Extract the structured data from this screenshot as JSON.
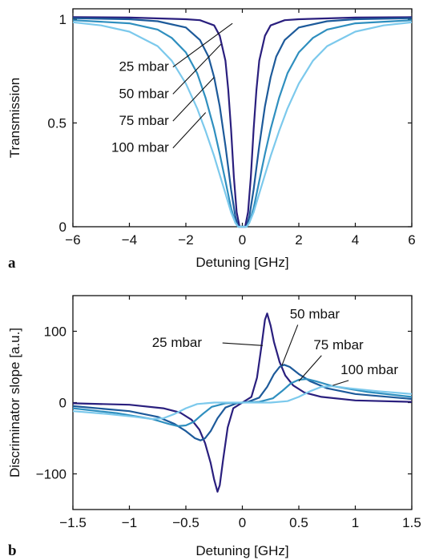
{
  "chart_data": [
    {
      "type": "line",
      "panel_label": "a",
      "xlabel": "Detuning [GHz]",
      "ylabel": "Transmission",
      "xlim": [
        -6,
        6
      ],
      "ylim": [
        0,
        1.05
      ],
      "xticks": [
        -6,
        -4,
        -2,
        0,
        2,
        4,
        6
      ],
      "xtick_labels": [
        "−6",
        "−4",
        "−2",
        "0",
        "2",
        "4",
        "6"
      ],
      "yticks": [
        0,
        0.5,
        1
      ],
      "ytick_labels": [
        "0",
        "0.5",
        "1"
      ],
      "grid": false,
      "series": [
        {
          "name": "25 mbar",
          "color": "#2a1f7e",
          "values": [
            [
              -6,
              1.01
            ],
            [
              -4,
              1.008
            ],
            [
              -2,
              1.0
            ],
            [
              -1.5,
              0.995
            ],
            [
              -1,
              0.97
            ],
            [
              -0.8,
              0.92
            ],
            [
              -0.6,
              0.8
            ],
            [
              -0.5,
              0.66
            ],
            [
              -0.4,
              0.47
            ],
            [
              -0.3,
              0.24
            ],
            [
              -0.2,
              0.07
            ],
            [
              -0.1,
              0.0
            ],
            [
              0,
              0.0
            ],
            [
              0.1,
              0.0
            ],
            [
              0.2,
              0.07
            ],
            [
              0.3,
              0.24
            ],
            [
              0.4,
              0.47
            ],
            [
              0.5,
              0.66
            ],
            [
              0.6,
              0.8
            ],
            [
              0.8,
              0.92
            ],
            [
              1,
              0.97
            ],
            [
              1.5,
              0.995
            ],
            [
              2,
              1.0
            ],
            [
              4,
              1.008
            ],
            [
              6,
              1.01
            ]
          ]
        },
        {
          "name": "50 mbar",
          "color": "#1d5a9a",
          "values": [
            [
              -6,
              1.005
            ],
            [
              -4,
              1.0
            ],
            [
              -3,
              0.99
            ],
            [
              -2,
              0.96
            ],
            [
              -1.5,
              0.9
            ],
            [
              -1.2,
              0.82
            ],
            [
              -1,
              0.72
            ],
            [
              -0.8,
              0.58
            ],
            [
              -0.6,
              0.39
            ],
            [
              -0.4,
              0.18
            ],
            [
              -0.25,
              0.05
            ],
            [
              -0.15,
              0.0
            ],
            [
              0,
              0.0
            ],
            [
              0.15,
              0.0
            ],
            [
              0.25,
              0.05
            ],
            [
              0.4,
              0.18
            ],
            [
              0.6,
              0.39
            ],
            [
              0.8,
              0.58
            ],
            [
              1,
              0.72
            ],
            [
              1.2,
              0.82
            ],
            [
              1.5,
              0.9
            ],
            [
              2,
              0.96
            ],
            [
              3,
              0.99
            ],
            [
              4,
              1.0
            ],
            [
              6,
              1.005
            ]
          ]
        },
        {
          "name": "75 mbar",
          "color": "#2f8fbf",
          "values": [
            [
              -6,
              0.995
            ],
            [
              -4,
              0.98
            ],
            [
              -3,
              0.95
            ],
            [
              -2.5,
              0.91
            ],
            [
              -2,
              0.84
            ],
            [
              -1.6,
              0.74
            ],
            [
              -1.3,
              0.62
            ],
            [
              -1,
              0.47
            ],
            [
              -0.8,
              0.35
            ],
            [
              -0.6,
              0.22
            ],
            [
              -0.4,
              0.09
            ],
            [
              -0.25,
              0.02
            ],
            [
              -0.15,
              0.0
            ],
            [
              0,
              0.0
            ],
            [
              0.15,
              0.0
            ],
            [
              0.25,
              0.02
            ],
            [
              0.4,
              0.09
            ],
            [
              0.6,
              0.22
            ],
            [
              0.8,
              0.35
            ],
            [
              1,
              0.47
            ],
            [
              1.3,
              0.62
            ],
            [
              1.6,
              0.74
            ],
            [
              2,
              0.84
            ],
            [
              2.5,
              0.91
            ],
            [
              3,
              0.95
            ],
            [
              4,
              0.98
            ],
            [
              6,
              0.995
            ]
          ]
        },
        {
          "name": "100 mbar",
          "color": "#7cc9ec",
          "values": [
            [
              -6,
              0.985
            ],
            [
              -5,
              0.97
            ],
            [
              -4,
              0.94
            ],
            [
              -3,
              0.87
            ],
            [
              -2.5,
              0.8
            ],
            [
              -2,
              0.69
            ],
            [
              -1.6,
              0.57
            ],
            [
              -1.3,
              0.46
            ],
            [
              -1,
              0.34
            ],
            [
              -0.8,
              0.25
            ],
            [
              -0.6,
              0.16
            ],
            [
              -0.4,
              0.07
            ],
            [
              -0.25,
              0.02
            ],
            [
              -0.15,
              0.0
            ],
            [
              0,
              0.0
            ],
            [
              0.15,
              0.0
            ],
            [
              0.25,
              0.02
            ],
            [
              0.4,
              0.07
            ],
            [
              0.6,
              0.16
            ],
            [
              0.8,
              0.25
            ],
            [
              1,
              0.34
            ],
            [
              1.3,
              0.46
            ],
            [
              1.6,
              0.57
            ],
            [
              2,
              0.69
            ],
            [
              2.5,
              0.8
            ],
            [
              3,
              0.87
            ],
            [
              4,
              0.94
            ],
            [
              5,
              0.97
            ],
            [
              6,
              0.985
            ]
          ]
        }
      ],
      "annotations": [
        {
          "text": "25 mbar",
          "x": -2.6,
          "y": 0.75,
          "to": [
            -0.35,
            0.98
          ]
        },
        {
          "text": "50 mbar",
          "x": -2.6,
          "y": 0.62,
          "to": [
            -0.75,
            0.88
          ]
        },
        {
          "text": "75 mbar",
          "x": -2.6,
          "y": 0.49,
          "to": [
            -1.0,
            0.72
          ]
        },
        {
          "text": "100 mbar",
          "x": -2.6,
          "y": 0.36,
          "to": [
            -1.3,
            0.55
          ]
        }
      ]
    },
    {
      "type": "line",
      "panel_label": "b",
      "xlabel": "Detuning [GHz]",
      "ylabel": "Discriminator slope [a.u.]",
      "xlim": [
        -1.5,
        1.5
      ],
      "ylim": [
        -150,
        150
      ],
      "xticks": [
        -1.5,
        -1,
        -0.5,
        0,
        0.5,
        1,
        1.5
      ],
      "xtick_labels": [
        "−1.5",
        "−1",
        "−0.5",
        "0",
        "0.5",
        "1",
        "1.5"
      ],
      "yticks": [
        -100,
        0,
        100
      ],
      "ytick_labels": [
        "−100",
        "0",
        "100"
      ],
      "grid": false,
      "series": [
        {
          "name": "25 mbar",
          "color": "#2a1f7e",
          "values": [
            [
              -1.5,
              -1
            ],
            [
              -1.0,
              -3
            ],
            [
              -0.7,
              -8
            ],
            [
              -0.55,
              -14
            ],
            [
              -0.45,
              -24
            ],
            [
              -0.38,
              -38
            ],
            [
              -0.33,
              -57
            ],
            [
              -0.28,
              -85
            ],
            [
              -0.25,
              -108
            ],
            [
              -0.22,
              -125
            ],
            [
              -0.2,
              -116
            ],
            [
              -0.17,
              -80
            ],
            [
              -0.13,
              -35
            ],
            [
              -0.08,
              -8
            ],
            [
              0,
              0
            ],
            [
              0.08,
              8
            ],
            [
              0.13,
              35
            ],
            [
              0.17,
              80
            ],
            [
              0.2,
              116
            ],
            [
              0.22,
              125
            ],
            [
              0.25,
              108
            ],
            [
              0.28,
              85
            ],
            [
              0.33,
              57
            ],
            [
              0.38,
              38
            ],
            [
              0.45,
              24
            ],
            [
              0.55,
              14
            ],
            [
              0.7,
              8
            ],
            [
              1.0,
              3
            ],
            [
              1.5,
              1
            ]
          ]
        },
        {
          "name": "50 mbar",
          "color": "#1d5a9a",
          "values": [
            [
              -1.5,
              -5
            ],
            [
              -1.0,
              -12
            ],
            [
              -0.75,
              -20
            ],
            [
              -0.6,
              -30
            ],
            [
              -0.5,
              -40
            ],
            [
              -0.42,
              -50
            ],
            [
              -0.37,
              -53
            ],
            [
              -0.33,
              -50
            ],
            [
              -0.28,
              -40
            ],
            [
              -0.22,
              -22
            ],
            [
              -0.15,
              -7
            ],
            [
              -0.05,
              -1
            ],
            [
              0,
              0
            ],
            [
              0.05,
              1
            ],
            [
              0.15,
              7
            ],
            [
              0.22,
              22
            ],
            [
              0.28,
              40
            ],
            [
              0.33,
              50
            ],
            [
              0.37,
              53
            ],
            [
              0.42,
              50
            ],
            [
              0.5,
              40
            ],
            [
              0.6,
              30
            ],
            [
              0.75,
              20
            ],
            [
              1.0,
              12
            ],
            [
              1.5,
              5
            ]
          ]
        },
        {
          "name": "75 mbar",
          "color": "#2f8fbf",
          "values": [
            [
              -1.5,
              -8
            ],
            [
              -1.1,
              -15
            ],
            [
              -0.8,
              -23
            ],
            [
              -0.65,
              -30
            ],
            [
              -0.57,
              -33
            ],
            [
              -0.5,
              -32
            ],
            [
              -0.43,
              -27
            ],
            [
              -0.35,
              -16
            ],
            [
              -0.27,
              -6
            ],
            [
              -0.15,
              -1
            ],
            [
              0,
              0
            ],
            [
              0.15,
              1
            ],
            [
              0.27,
              6
            ],
            [
              0.35,
              16
            ],
            [
              0.43,
              27
            ],
            [
              0.5,
              32
            ],
            [
              0.57,
              33
            ],
            [
              0.65,
              30
            ],
            [
              0.8,
              23
            ],
            [
              1.1,
              15
            ],
            [
              1.5,
              8
            ]
          ]
        },
        {
          "name": "100 mbar",
          "color": "#7cc9ec",
          "values": [
            [
              -1.5,
              -12
            ],
            [
              -1.2,
              -16
            ],
            [
              -0.95,
              -20
            ],
            [
              -0.8,
              -23
            ],
            [
              -0.7,
              -22
            ],
            [
              -0.6,
              -16
            ],
            [
              -0.5,
              -8
            ],
            [
              -0.4,
              -2
            ],
            [
              -0.25,
              0
            ],
            [
              0,
              0
            ],
            [
              0.25,
              0
            ],
            [
              0.4,
              2
            ],
            [
              0.5,
              8
            ],
            [
              0.6,
              16
            ],
            [
              0.7,
              22
            ],
            [
              0.8,
              23
            ],
            [
              0.95,
              20
            ],
            [
              1.2,
              16
            ],
            [
              1.5,
              12
            ]
          ]
        }
      ],
      "annotations": [
        {
          "text": "25 mbar",
          "x": -0.8,
          "y": 78,
          "to": [
            0.18,
            80
          ]
        },
        {
          "text": "50 mbar",
          "x": 0.42,
          "y": 118,
          "to": [
            0.35,
            52
          ]
        },
        {
          "text": "75 mbar",
          "x": 0.63,
          "y": 75,
          "to": [
            0.5,
            30
          ]
        },
        {
          "text": "100 mbar",
          "x": 0.87,
          "y": 40,
          "to": [
            0.8,
            24
          ]
        }
      ]
    }
  ]
}
